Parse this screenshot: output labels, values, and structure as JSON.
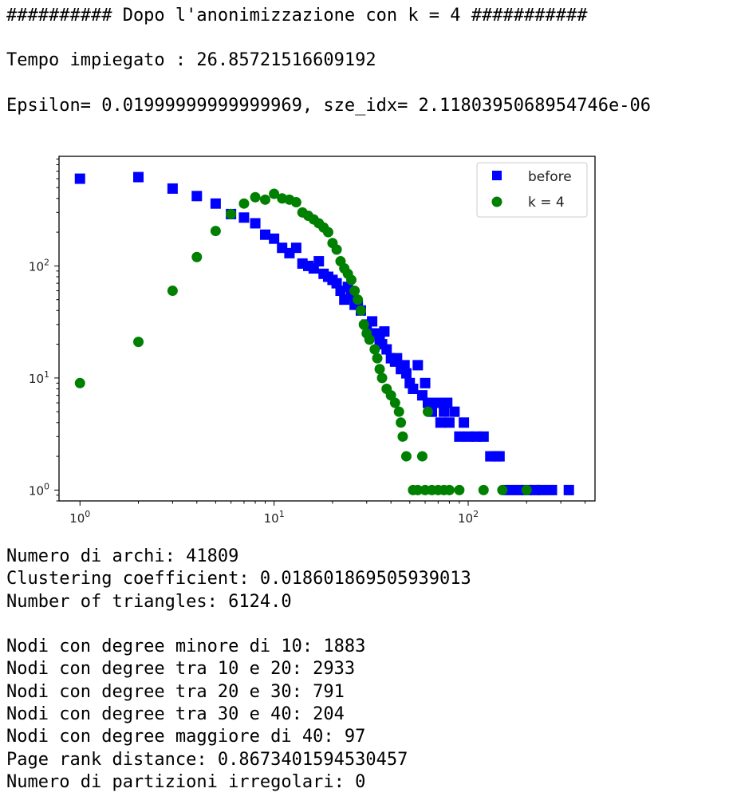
{
  "header": {
    "line1": "########## Dopo l'anonimizzazione con k = 4 ###########",
    "line2": "Tempo impiegato : 26.85721516609192",
    "line3": "Epsilon= 0.01999999999999969, sze_idx= 2.1180395068954746e-06"
  },
  "stats": [
    "Numero di archi: 41809",
    "Clustering coefficient: 0.018601869505939013",
    "Number of triangles: 6124.0",
    "",
    "Nodi con degree minore di 10: 1883",
    "Nodi con degree tra 10 e 20: 2933",
    "Nodi con degree tra 20 e 30: 791",
    "Nodi con degree tra 30 e 40: 204",
    "Nodi con degree maggiore di 40: 97",
    "Page rank distance: 0.8673401594530457",
    "Numero di partizioni irregolari: 0"
  ],
  "chart_data": {
    "type": "scatter",
    "xscale": "log",
    "yscale": "log",
    "xlim": [
      0.78,
      450
    ],
    "ylim": [
      0.8,
      950
    ],
    "xticks": [
      {
        "value": 1,
        "base": "10",
        "exp": "0"
      },
      {
        "value": 10,
        "base": "10",
        "exp": "1"
      },
      {
        "value": 100,
        "base": "10",
        "exp": "2"
      }
    ],
    "yticks": [
      {
        "value": 1,
        "base": "10",
        "exp": "0"
      },
      {
        "value": 10,
        "base": "10",
        "exp": "1"
      },
      {
        "value": 100,
        "base": "10",
        "exp": "2"
      }
    ],
    "legend": "top-right",
    "series": [
      {
        "name": "before",
        "marker": "square",
        "color": "#0000ff",
        "points": [
          [
            1,
            600
          ],
          [
            2,
            620
          ],
          [
            3,
            490
          ],
          [
            4,
            420
          ],
          [
            5,
            360
          ],
          [
            6,
            290
          ],
          [
            7,
            270
          ],
          [
            8,
            240
          ],
          [
            9,
            190
          ],
          [
            10,
            175
          ],
          [
            11,
            145
          ],
          [
            12,
            130
          ],
          [
            13,
            145
          ],
          [
            14,
            105
          ],
          [
            15,
            100
          ],
          [
            16,
            95
          ],
          [
            17,
            110
          ],
          [
            18,
            85
          ],
          [
            19,
            80
          ],
          [
            20,
            75
          ],
          [
            21,
            70
          ],
          [
            22,
            60
          ],
          [
            23,
            50
          ],
          [
            24,
            65
          ],
          [
            25,
            55
          ],
          [
            26,
            45
          ],
          [
            27,
            45
          ],
          [
            28,
            40
          ],
          [
            30,
            30
          ],
          [
            32,
            32
          ],
          [
            33,
            25
          ],
          [
            35,
            22
          ],
          [
            36,
            20
          ],
          [
            37,
            26
          ],
          [
            38,
            18
          ],
          [
            40,
            15
          ],
          [
            42,
            14
          ],
          [
            43,
            15
          ],
          [
            45,
            12
          ],
          [
            47,
            13
          ],
          [
            48,
            11
          ],
          [
            50,
            9
          ],
          [
            52,
            8
          ],
          [
            55,
            13
          ],
          [
            58,
            7
          ],
          [
            60,
            9
          ],
          [
            62,
            6
          ],
          [
            65,
            5
          ],
          [
            70,
            6
          ],
          [
            72,
            4
          ],
          [
            75,
            5
          ],
          [
            78,
            6
          ],
          [
            80,
            4
          ],
          [
            85,
            5
          ],
          [
            90,
            3
          ],
          [
            95,
            4
          ],
          [
            100,
            3
          ],
          [
            110,
            3
          ],
          [
            120,
            3
          ],
          [
            130,
            2
          ],
          [
            140,
            2
          ],
          [
            145,
            2
          ],
          [
            160,
            1
          ],
          [
            180,
            1
          ],
          [
            200,
            1
          ],
          [
            220,
            1
          ],
          [
            240,
            1
          ],
          [
            270,
            1
          ],
          [
            330,
            1
          ]
        ]
      },
      {
        "name": "k = 4",
        "marker": "circle",
        "color": "#008000",
        "points": [
          [
            1,
            9
          ],
          [
            2,
            21
          ],
          [
            3,
            60
          ],
          [
            4,
            120
          ],
          [
            5,
            205
          ],
          [
            6,
            290
          ],
          [
            7,
            360
          ],
          [
            8,
            410
          ],
          [
            9,
            390
          ],
          [
            10,
            440
          ],
          [
            11,
            400
          ],
          [
            12,
            390
          ],
          [
            13,
            370
          ],
          [
            14,
            300
          ],
          [
            15,
            280
          ],
          [
            16,
            260
          ],
          [
            17,
            240
          ],
          [
            18,
            220
          ],
          [
            19,
            200
          ],
          [
            20,
            160
          ],
          [
            21,
            140
          ],
          [
            22,
            110
          ],
          [
            23,
            95
          ],
          [
            24,
            85
          ],
          [
            25,
            75
          ],
          [
            26,
            60
          ],
          [
            27,
            50
          ],
          [
            28,
            40
          ],
          [
            29,
            30
          ],
          [
            30,
            25
          ],
          [
            31,
            22
          ],
          [
            33,
            18
          ],
          [
            34,
            15
          ],
          [
            35,
            12
          ],
          [
            36,
            10
          ],
          [
            38,
            8
          ],
          [
            40,
            7
          ],
          [
            42,
            6
          ],
          [
            44,
            5
          ],
          [
            45,
            4
          ],
          [
            46,
            3
          ],
          [
            48,
            2
          ],
          [
            52,
            1
          ],
          [
            55,
            1
          ],
          [
            58,
            2
          ],
          [
            60,
            1
          ],
          [
            62,
            5
          ],
          [
            65,
            1
          ],
          [
            70,
            1
          ],
          [
            75,
            1
          ],
          [
            80,
            1
          ],
          [
            90,
            1
          ],
          [
            120,
            1
          ],
          [
            150,
            1
          ],
          [
            200,
            1
          ]
        ]
      }
    ]
  }
}
